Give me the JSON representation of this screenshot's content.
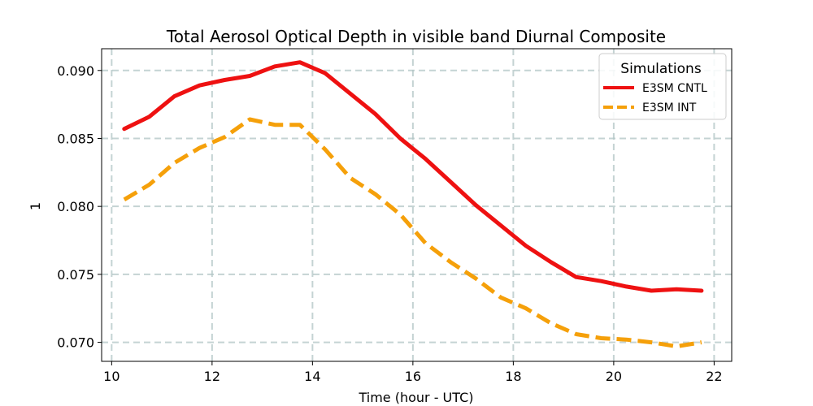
{
  "chart_data": {
    "type": "line",
    "title": "Total Aerosol Optical Depth in visible band Diurnal Composite",
    "xlabel": "Time (hour - UTC)",
    "ylabel": "1",
    "xlim": [
      9.8,
      22.35
    ],
    "ylim": [
      0.0686,
      0.0916
    ],
    "xticks": [
      10,
      12,
      14,
      16,
      18,
      20,
      22
    ],
    "yticks": [
      0.07,
      0.075,
      0.08,
      0.085,
      0.09
    ],
    "xtick_labels": [
      "10",
      "12",
      "14",
      "16",
      "18",
      "20",
      "22"
    ],
    "ytick_labels": [
      "0.070",
      "0.075",
      "0.080",
      "0.085",
      "0.090"
    ],
    "grid": true,
    "legend": {
      "title": "Simulations",
      "placement": "upper right"
    },
    "x": [
      10.25,
      10.75,
      11.25,
      11.75,
      12.25,
      12.75,
      13.25,
      13.75,
      14.25,
      14.75,
      15.25,
      15.75,
      16.25,
      16.75,
      17.25,
      17.75,
      18.25,
      18.75,
      19.25,
      19.75,
      20.25,
      20.75,
      21.25,
      21.75
    ],
    "series": [
      {
        "name": "E3SM CNTL",
        "color": "#ee1111",
        "style": "solid",
        "values": [
          0.0857,
          0.0866,
          0.0881,
          0.0889,
          0.0893,
          0.0896,
          0.0903,
          0.0906,
          0.0898,
          0.0883,
          0.0868,
          0.085,
          0.0835,
          0.0818,
          0.0801,
          0.0786,
          0.0771,
          0.0759,
          0.0748,
          0.0745,
          0.0741,
          0.0738,
          0.0739,
          0.0738
        ]
      },
      {
        "name": "E3SM INT",
        "color": "#f5a00a",
        "style": "dashed",
        "values": [
          0.0805,
          0.0816,
          0.0832,
          0.0843,
          0.0851,
          0.0864,
          0.086,
          0.086,
          0.0842,
          0.0821,
          0.0809,
          0.0794,
          0.0773,
          0.0759,
          0.0747,
          0.0733,
          0.0725,
          0.0714,
          0.0706,
          0.0703,
          0.0702,
          0.07,
          0.0697,
          0.07
        ]
      }
    ]
  }
}
